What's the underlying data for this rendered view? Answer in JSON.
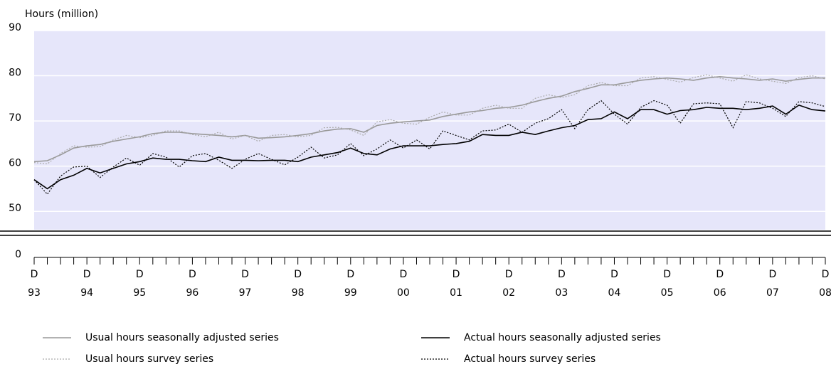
{
  "chart_data": {
    "type": "line",
    "y_label": "Hours (million)",
    "categories": [
      "D\n93",
      null,
      null,
      null,
      "D\n94",
      null,
      null,
      null,
      "D\n95",
      null,
      null,
      null,
      "D\n96",
      null,
      null,
      null,
      "D\n97",
      null,
      null,
      null,
      "D\n98",
      null,
      null,
      null,
      "D\n99",
      null,
      null,
      null,
      "D\n00",
      null,
      null,
      null,
      "D\n01",
      null,
      null,
      null,
      "D\n02",
      null,
      null,
      null,
      "D\n03",
      null,
      null,
      null,
      "D\n04",
      null,
      null,
      null,
      "D\n05",
      null,
      null,
      null,
      "D\n06",
      null,
      null,
      null,
      "D\n07",
      null,
      null,
      null,
      "D\n08"
    ],
    "ylim": [
      0,
      90
    ],
    "yticks": [
      0,
      50,
      60,
      70,
      80,
      90
    ],
    "axis_break": [
      0,
      45
    ],
    "grid": true,
    "series": [
      {
        "name": "Usual hours seasonally adjusted series",
        "color": "#999999",
        "dash": false,
        "values": [
          61.0,
          61.2,
          62.5,
          64.0,
          64.5,
          64.8,
          65.5,
          66.0,
          66.5,
          67.2,
          67.5,
          67.5,
          67.2,
          67.0,
          66.8,
          66.5,
          66.8,
          66.2,
          66.3,
          66.5,
          66.8,
          67.2,
          67.8,
          68.2,
          68.3,
          67.5,
          69.0,
          69.5,
          69.8,
          70.0,
          70.2,
          71.0,
          71.5,
          72.0,
          72.3,
          72.8,
          73.0,
          73.5,
          74.3,
          75.0,
          75.5,
          76.5,
          77.2,
          78.0,
          78.0,
          78.5,
          79.0,
          79.3,
          79.5,
          79.3,
          79.0,
          79.5,
          79.8,
          79.5,
          79.3,
          79.0,
          79.3,
          78.8,
          79.2,
          79.5,
          79.5
        ]
      },
      {
        "name": "Actual hours seasonally adjusted series",
        "color": "#000000",
        "dash": false,
        "values": [
          57.0,
          55.0,
          57.0,
          58.0,
          59.5,
          58.5,
          59.5,
          60.5,
          61.0,
          61.8,
          61.5,
          61.5,
          61.2,
          61.0,
          62.0,
          61.3,
          61.3,
          61.2,
          61.3,
          61.3,
          61.0,
          62.0,
          62.5,
          63.0,
          64.0,
          62.8,
          62.5,
          63.8,
          64.5,
          64.5,
          64.5,
          64.8,
          65.0,
          65.5,
          67.0,
          66.8,
          66.8,
          67.5,
          67.0,
          67.8,
          68.5,
          69.0,
          70.3,
          70.5,
          72.0,
          70.5,
          72.5,
          72.5,
          71.5,
          72.3,
          72.5,
          73.0,
          72.8,
          72.8,
          72.5,
          72.8,
          73.3,
          71.5,
          73.5,
          72.5,
          72.2
        ]
      },
      {
        "name": "Usual hours survey series",
        "color": "#aaaaaa",
        "dash": true,
        "values": [
          60.8,
          60.5,
          62.8,
          64.5,
          64.2,
          64.3,
          65.8,
          66.8,
          66.3,
          66.8,
          67.8,
          67.8,
          67.0,
          66.5,
          67.5,
          66.0,
          66.8,
          65.5,
          66.8,
          67.0,
          66.5,
          66.8,
          68.5,
          68.6,
          68.0,
          66.8,
          69.8,
          70.3,
          69.5,
          69.3,
          70.8,
          72.0,
          71.3,
          71.3,
          72.8,
          73.5,
          72.8,
          72.8,
          75.0,
          75.8,
          75.2,
          75.8,
          77.8,
          78.5,
          77.8,
          77.8,
          79.5,
          79.8,
          79.2,
          78.6,
          79.6,
          80.2,
          79.5,
          78.8,
          80.2,
          79.3,
          78.8,
          78.3,
          79.6,
          80.0,
          79.3
        ]
      },
      {
        "name": "Actual hours survey series",
        "color": "#000000",
        "dash": true,
        "values": [
          57.0,
          53.8,
          57.8,
          59.8,
          60.0,
          57.5,
          59.8,
          61.8,
          60.2,
          62.8,
          62.0,
          59.8,
          62.3,
          62.8,
          61.3,
          59.5,
          61.5,
          62.8,
          61.5,
          60.3,
          62.0,
          64.2,
          61.8,
          62.5,
          65.0,
          62.3,
          63.8,
          65.8,
          64.0,
          65.8,
          63.8,
          67.8,
          66.8,
          65.8,
          67.8,
          68.0,
          69.3,
          67.5,
          69.5,
          70.5,
          72.5,
          68.3,
          72.5,
          74.5,
          71.5,
          69.3,
          73.0,
          74.5,
          73.5,
          69.5,
          73.8,
          74.0,
          73.8,
          68.5,
          74.3,
          74.0,
          72.8,
          71.0,
          74.3,
          74.0,
          73.2
        ]
      }
    ]
  }
}
